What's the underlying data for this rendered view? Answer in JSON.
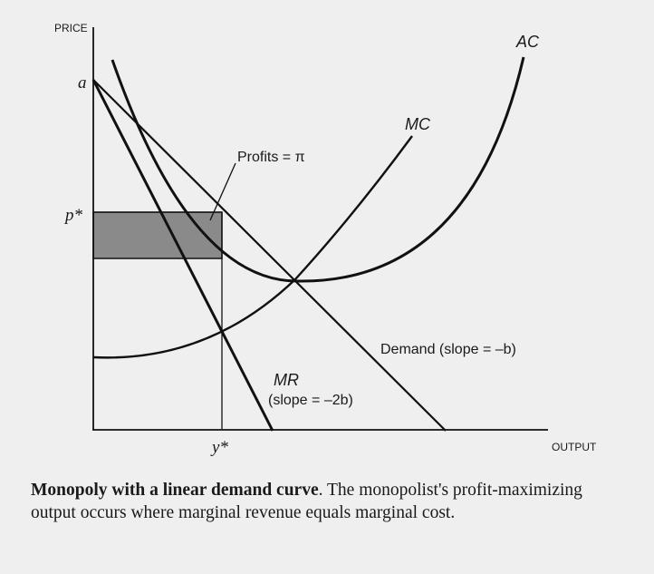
{
  "axes": {
    "y_label": "PRICE",
    "x_label": "OUTPUT"
  },
  "ticks": {
    "a": "a",
    "p_star": "p*",
    "y_star": "y*"
  },
  "labels": {
    "ac": "AC",
    "mc": "MC",
    "profits": "Profits = π",
    "demand": "Demand (slope = –b)",
    "mr_line1": "MR",
    "mr_line2": "(slope = –2b)"
  },
  "caption": {
    "title": "Monopoly with a linear demand curve",
    "body": ". The monopolist's profit-maximizing output occurs where marginal revenue equals marginal cost."
  },
  "colors": {
    "curves": "#111111",
    "profit_region": "#8a8a8a",
    "background": "#efefef"
  }
}
